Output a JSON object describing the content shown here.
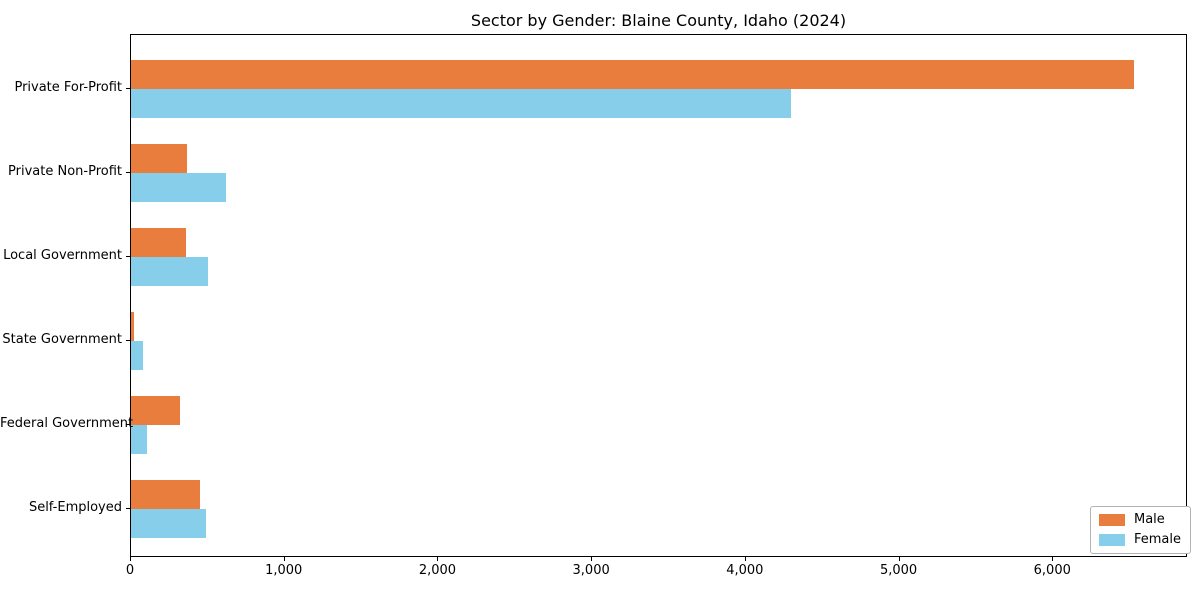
{
  "chart_data": {
    "type": "bar",
    "orientation": "horizontal",
    "title": "Sector by Gender: Blaine County, Idaho (2024)",
    "categories": [
      "Private For-Profit",
      "Private Non-Profit",
      "Local Government",
      "State Government",
      "Federal Government",
      "Self-Employed"
    ],
    "series": [
      {
        "name": "Male",
        "color": "#e87d3d",
        "values": [
          6528,
          364,
          360,
          20,
          322,
          451
        ]
      },
      {
        "name": "Female",
        "color": "#87ceeb",
        "values": [
          4293,
          620,
          500,
          75,
          101,
          490
        ]
      }
    ],
    "xlabel": "",
    "ylabel": "",
    "xlim": [
      0,
      6870
    ],
    "x_ticks": [
      0,
      1000,
      2000,
      3000,
      4000,
      5000,
      6000
    ],
    "x_tick_labels": [
      "0",
      "1,000",
      "2,000",
      "3,000",
      "4,000",
      "5,000",
      "6,000"
    ],
    "grid": false,
    "legend": {
      "position": "lower right",
      "entries": [
        "Male",
        "Female"
      ]
    }
  },
  "colors": {
    "male": "#e87d3d",
    "female": "#87ceeb",
    "spine": "#000000",
    "text": "#000000",
    "legend_border": "#b3b3b3",
    "background": "#ffffff"
  }
}
